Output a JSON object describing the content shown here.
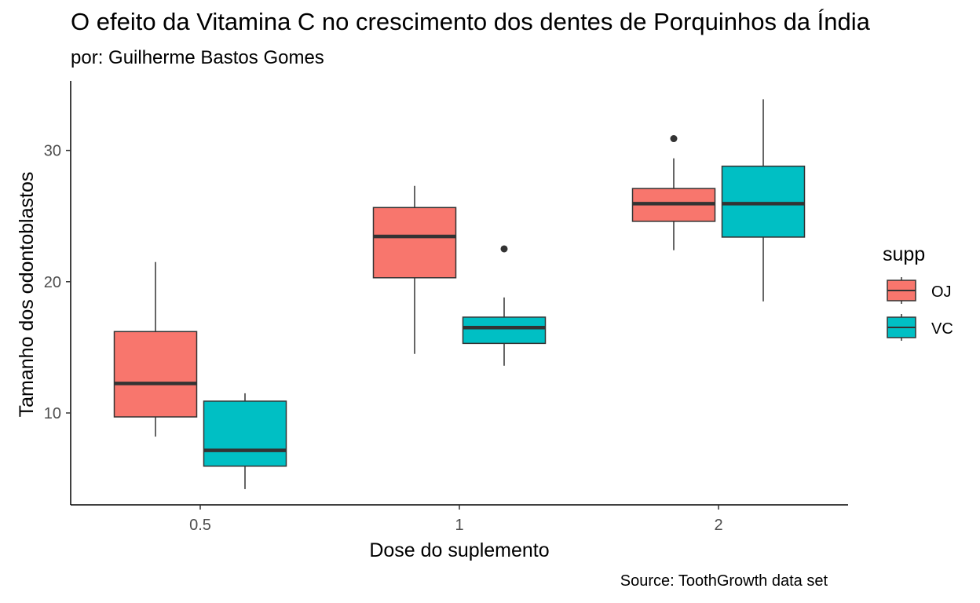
{
  "chart_data": {
    "type": "boxplot",
    "title": "O efeito da Vitamina C no crescimento dos dentes de Porquinhos da Índia",
    "subtitle": "por: Guilherme Bastos Gomes",
    "caption": "Source: ToothGrowth data set",
    "xlabel": "Dose do suplemento",
    "ylabel": "Tamanho dos odontoblastos",
    "categories": [
      "0.5",
      "1",
      "2"
    ],
    "ylim": [
      3.0,
      35.3
    ],
    "yticks": [
      10,
      20,
      30
    ],
    "grid": false,
    "legend": {
      "title": "supp",
      "position": "right",
      "entries": [
        "OJ",
        "VC"
      ]
    },
    "series": [
      {
        "name": "OJ",
        "color": "#F8766D",
        "boxes": [
          {
            "category": "0.5",
            "whisker_low": 8.2,
            "q1": 9.7,
            "median": 12.25,
            "q3": 16.2,
            "whisker_high": 21.5,
            "outliers": []
          },
          {
            "category": "1",
            "whisker_low": 14.5,
            "q1": 20.3,
            "median": 23.45,
            "q3": 25.65,
            "whisker_high": 27.3,
            "outliers": []
          },
          {
            "category": "2",
            "whisker_low": 22.4,
            "q1": 24.6,
            "median": 25.95,
            "q3": 27.1,
            "whisker_high": 29.4,
            "outliers": [
              30.9
            ]
          }
        ]
      },
      {
        "name": "VC",
        "color": "#00BFC4",
        "boxes": [
          {
            "category": "0.5",
            "whisker_low": 4.2,
            "q1": 5.95,
            "median": 7.15,
            "q3": 10.9,
            "whisker_high": 11.5,
            "outliers": []
          },
          {
            "category": "1",
            "whisker_low": 13.6,
            "q1": 15.3,
            "median": 16.5,
            "q3": 17.3,
            "whisker_high": 18.8,
            "outliers": [
              22.5
            ]
          },
          {
            "category": "2",
            "whisker_low": 18.5,
            "q1": 23.4,
            "median": 25.95,
            "q3": 28.8,
            "whisker_high": 33.9,
            "outliers": []
          }
        ]
      }
    ]
  }
}
